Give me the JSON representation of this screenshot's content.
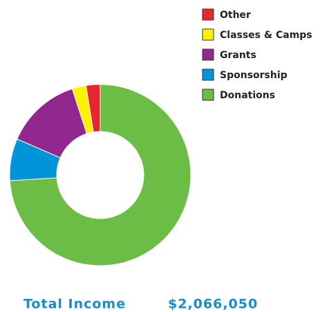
{
  "chart_data": {
    "type": "pie",
    "donut": true,
    "categories": [
      "Other",
      "Classes & Camps",
      "Grants",
      "Sponsorship",
      "Donations"
    ],
    "values": [
      2.5,
      2.5,
      13.5,
      7.5,
      74
    ],
    "colors": [
      "#e8262d",
      "#fff200",
      "#92278f",
      "#0095da",
      "#6cbd45"
    ],
    "total_label": "Total Income",
    "total_value": "$2,066,050"
  }
}
